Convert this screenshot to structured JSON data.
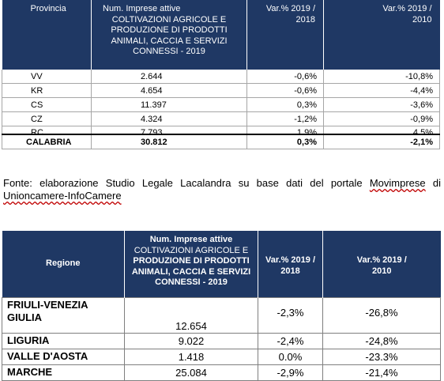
{
  "table_province": {
    "headers": {
      "provincia": "Provincia",
      "num_title": "Num. Imprese attive",
      "num_sub": "COLTIVAZIONI AGRICOLE E PRODUZIONE DI PRODOTTI ANIMALI, CACCIA E SERVIZI CONNESSI - 2019",
      "var_2018_line1": "Var.% 2019 /",
      "var_2018_line2": "2018",
      "var_2010_line1": "Var.% 2019 /",
      "var_2010_line2": "2010"
    },
    "rows": [
      {
        "provincia": "VV",
        "num": "2.644",
        "var2018": "-0,6%",
        "var2010": "-10,8%"
      },
      {
        "provincia": "KR",
        "num": "4.654",
        "var2018": "-0,6%",
        "var2010": "-4,4%"
      },
      {
        "provincia": "CS",
        "num": "11.397",
        "var2018": "0,3%",
        "var2010": "-3,6%"
      },
      {
        "provincia": "CZ",
        "num": "4.324",
        "var2018": "-1,2%",
        "var2010": "-0,9%"
      },
      {
        "provincia": "RC",
        "num": "7.793",
        "var2018": "1,9%",
        "var2010": "4,5%"
      }
    ],
    "total": {
      "provincia": "CALABRIA",
      "num": "30.812",
      "var2018": "0,3%",
      "var2010": "-2,1%"
    }
  },
  "caption": {
    "part1": "Fonte: elaborazione Studio Legale Lacalandra su base dati del portale ",
    "link1": "Movimprese",
    "part2": " di ",
    "link2": "Unioncamere-InfoCamere"
  },
  "table_regioni": {
    "headers": {
      "regione": "Regione",
      "num_title": "Num. Imprese attive",
      "num_sub1": "COLTIVAZIONI AGRICOLE E",
      "num_sub2": "PRODUZIONE DI PRODOTTI ANIMALI, CACCIA E SERVIZI CONNESSI - 2019",
      "var_2018_line1": "Var.% 2019 /",
      "var_2018_line2": "2018",
      "var_2010_line1": "Var.% 2019 /",
      "var_2010_line2": "2010"
    },
    "rows": [
      {
        "regione": "FRIULI-VENEZIA GIULIA",
        "num": "12.654",
        "var2018": "-2,3%",
        "var2010": "-26,8%"
      },
      {
        "regione": "LIGURIA",
        "num": "9.022",
        "var2018": "-2,4%",
        "var2010": "-24,8%"
      },
      {
        "regione": "VALLE D'AOSTA",
        "num": "1.418",
        "var2018": "0.0%",
        "var2010": "-23.3%"
      },
      {
        "regione": "MARCHE",
        "num": "25.084",
        "var2018": "-2,9%",
        "var2010": "-21,4%"
      }
    ]
  },
  "colors": {
    "header_bg": "#1f3864",
    "header_text": "#ffffff",
    "spell_underline": "#c00000"
  }
}
